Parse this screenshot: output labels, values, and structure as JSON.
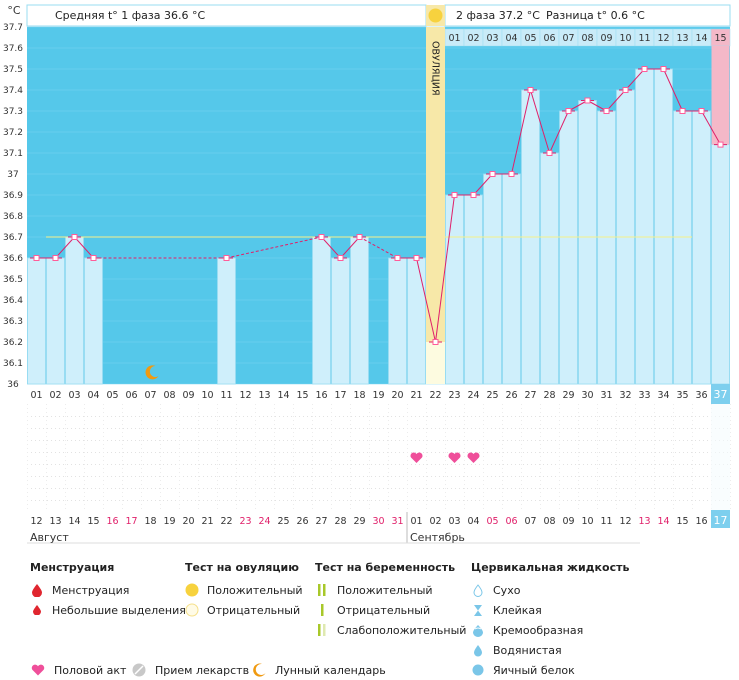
{
  "header": {
    "unit": "°C",
    "phase1_text": "Средняя t° 1 фаза  36.6 °C",
    "phase2_text": "2 фаза  37.2 °C",
    "diff_text": "Разница t° 0.6 °C",
    "ovulation_label": "ОВУЛЯЦИЯ"
  },
  "chart_data": {
    "type": "line",
    "ylabel": "°C",
    "ylim": [
      36.0,
      37.7
    ],
    "yticks": [
      "37.7",
      "37.6",
      "37.5",
      "37.4",
      "37.3",
      "37.2",
      "37.1",
      "37",
      "36.9",
      "36.8",
      "36.7",
      "36.6",
      "36.5",
      "36.4",
      "36.3",
      "36.2",
      "36.1",
      "36"
    ],
    "cycle_days": [
      "01",
      "02",
      "03",
      "04",
      "05",
      "06",
      "07",
      "08",
      "09",
      "10",
      "11",
      "12",
      "13",
      "14",
      "15",
      "16",
      "17",
      "18",
      "19",
      "20",
      "21",
      "22",
      "23",
      "24",
      "25",
      "26",
      "27",
      "28",
      "29",
      "30",
      "31",
      "32",
      "33",
      "34",
      "35",
      "36",
      "37"
    ],
    "temperatures": [
      36.6,
      36.6,
      36.7,
      36.6,
      null,
      null,
      null,
      null,
      null,
      null,
      36.6,
      null,
      null,
      null,
      null,
      36.7,
      36.6,
      36.7,
      null,
      36.6,
      36.6,
      36.2,
      36.9,
      36.9,
      37.0,
      37.0,
      37.4,
      37.1,
      37.3,
      37.35,
      37.3,
      37.4,
      37.5,
      37.5,
      37.3,
      37.3,
      37.14
    ],
    "phase1_average": 36.6,
    "phase2_average": 37.2,
    "ovulation_cycle_day": "22",
    "post_ovulation_days": [
      "01",
      "02",
      "03",
      "04",
      "05",
      "06",
      "07",
      "08",
      "09",
      "10",
      "11",
      "12",
      "13",
      "14",
      "15"
    ],
    "calendar_dates": [
      "12",
      "13",
      "14",
      "15",
      "16",
      "17",
      "18",
      "19",
      "20",
      "21",
      "22",
      "23",
      "24",
      "25",
      "26",
      "27",
      "28",
      "29",
      "30",
      "31",
      "01",
      "02",
      "03",
      "04",
      "05",
      "06",
      "07",
      "08",
      "09",
      "10",
      "11",
      "12",
      "13",
      "14",
      "15",
      "16",
      "17"
    ],
    "weekend_flags": [
      false,
      false,
      false,
      false,
      true,
      true,
      false,
      false,
      false,
      false,
      false,
      true,
      true,
      false,
      false,
      false,
      false,
      false,
      true,
      true,
      false,
      false,
      false,
      false,
      true,
      true,
      false,
      false,
      false,
      false,
      false,
      false,
      true,
      true,
      false,
      false,
      false
    ],
    "month_labels": [
      "Август",
      "Сентябрь"
    ],
    "intercourse_cycle_days": [
      "21",
      "23",
      "24"
    ],
    "moon_cycle_day": "07",
    "current_cycle_day": "37",
    "current_calendar_date": "17"
  },
  "colors": {
    "plot_bg": "#55c8ea",
    "bar_fill": "#cfeffb",
    "bar_stroke": "#9adcf2",
    "ovulation_band": "#f7e8a8",
    "line": "#e0206a",
    "marker": "#ff5c99",
    "avg_line": "#f6f08a",
    "weekend": "#e0206a",
    "heart": "#ef4f9a",
    "moon": "#f09a10",
    "current_col": "#7dcfee",
    "last_day_pink": "#f4b8c8"
  },
  "legend": {
    "menstruation": {
      "title": "Менструация",
      "items": [
        "Менструация",
        "Небольшие выделения"
      ]
    },
    "ovulation_test": {
      "title": "Тест на овуляцию",
      "items": [
        "Положительный",
        "Отрицательный"
      ]
    },
    "pregnancy_test": {
      "title": "Тест на беременность",
      "items": [
        "Положительный",
        "Отрицательный",
        "Слабоположительный"
      ]
    },
    "cervical": {
      "title": "Цервикальная жидкость",
      "items": [
        "Сухо",
        "Клейкая",
        "Кремообразная",
        "Водянистая",
        "Яичный белок"
      ]
    },
    "bottom": [
      "Половой акт",
      "Прием лекарств",
      "Лунный календарь"
    ]
  }
}
